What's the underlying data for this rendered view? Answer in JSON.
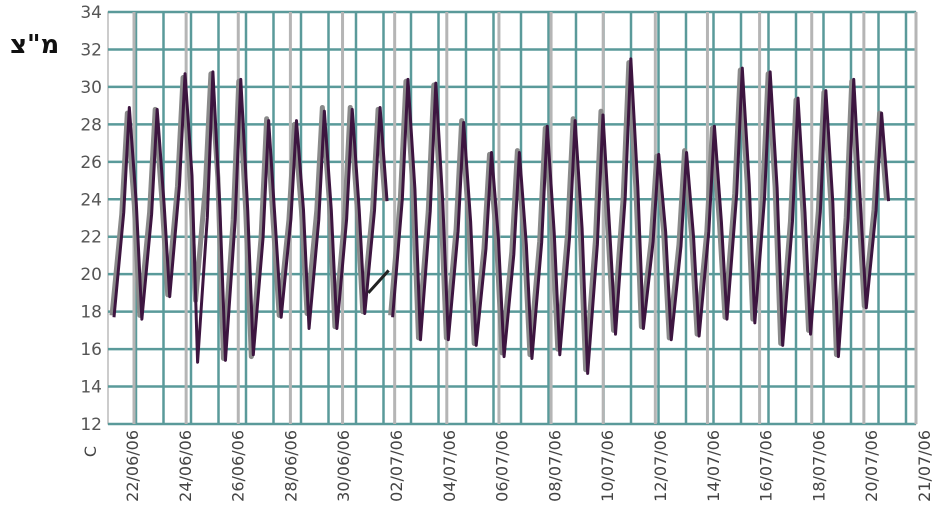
{
  "chart_data": {
    "type": "line",
    "ylabel": "מ\"צ",
    "unit_label": "C",
    "ylim": [
      12,
      34
    ],
    "yticks": [
      12,
      14,
      16,
      18,
      20,
      22,
      24,
      26,
      28,
      30,
      32,
      34
    ],
    "x_tick_labels": [
      "22/06/06",
      "24/06/06",
      "26/06/06",
      "28/06/06",
      "30/06/06",
      "02/07/06",
      "04/07/06",
      "06/07/06",
      "08/07/06",
      "10/07/06",
      "12/07/06",
      "14/07/06",
      "16/07/06",
      "18/07/06",
      "20/07/06",
      "21/07/06"
    ],
    "grid": true,
    "series": [
      {
        "color": "#8a8a8a",
        "daily_max": [
          28.6,
          28.8,
          30.5,
          30.7,
          30.3,
          28.3,
          28.0,
          28.9,
          28.9,
          28.8,
          30.3,
          30.1,
          28.2,
          26.4,
          26.6,
          27.8,
          28.3,
          28.7,
          31.3,
          26.3,
          26.6,
          27.8,
          30.9,
          30.7,
          29.3,
          29.7,
          30.3,
          28.6
        ],
        "daily_min": [
          17.8,
          17.8,
          18.9,
          18.6,
          15.5,
          15.6,
          17.8,
          17.9,
          17.2,
          18.0,
          17.8,
          16.6,
          16.6,
          16.3,
          15.8,
          15.7,
          16.0,
          14.9,
          17.0,
          17.2,
          16.6,
          16.8,
          17.7,
          17.6,
          16.3,
          17.0,
          15.7,
          18.3
        ]
      },
      {
        "color": "#3d1540",
        "daily_max": [
          28.9,
          28.8,
          30.7,
          30.8,
          30.4,
          28.2,
          28.2,
          28.7,
          28.8,
          28.9,
          30.4,
          30.2,
          28.1,
          26.5,
          26.5,
          27.9,
          28.2,
          28.5,
          31.5,
          26.4,
          26.5,
          27.9,
          31.0,
          30.8,
          29.4,
          29.8,
          30.4,
          28.6
        ],
        "daily_min": [
          17.7,
          17.6,
          18.8,
          15.3,
          15.4,
          15.7,
          17.7,
          17.1,
          17.1,
          17.9,
          17.7,
          16.5,
          16.5,
          16.2,
          15.6,
          15.5,
          15.7,
          14.7,
          16.8,
          17.1,
          16.5,
          16.7,
          17.6,
          17.4,
          16.2,
          16.8,
          15.6,
          18.2
        ]
      }
    ]
  }
}
